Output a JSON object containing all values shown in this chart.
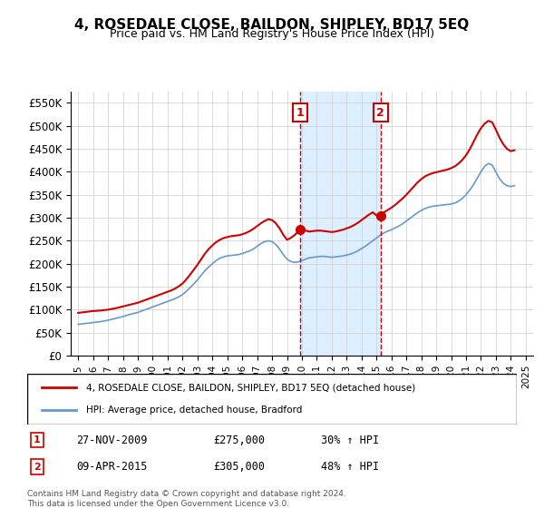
{
  "title": "4, ROSEDALE CLOSE, BAILDON, SHIPLEY, BD17 5EQ",
  "subtitle": "Price paid vs. HM Land Registry's House Price Index (HPI)",
  "legend_line1": "4, ROSEDALE CLOSE, BAILDON, SHIPLEY, BD17 5EQ (detached house)",
  "legend_line2": "HPI: Average price, detached house, Bradford",
  "footnote": "Contains HM Land Registry data © Crown copyright and database right 2024.\nThis data is licensed under the Open Government Licence v3.0.",
  "sale1_date": "27-NOV-2009",
  "sale1_price": 275000,
  "sale1_label": "30% ↑ HPI",
  "sale2_date": "09-APR-2015",
  "sale2_price": 305000,
  "sale2_label": "48% ↑ HPI",
  "sale1_x": 2009.9,
  "sale2_x": 2015.27,
  "ylim": [
    0,
    575000
  ],
  "xlim": [
    1994.5,
    2025.5
  ],
  "red_color": "#cc0000",
  "blue_color": "#6699cc",
  "shade_color": "#ddeeff",
  "yticks": [
    0,
    50000,
    100000,
    150000,
    200000,
    250000,
    300000,
    350000,
    400000,
    450000,
    500000,
    550000
  ],
  "ytick_labels": [
    "£0",
    "£50K",
    "£100K",
    "£150K",
    "£200K",
    "£250K",
    "£300K",
    "£350K",
    "£400K",
    "£450K",
    "£500K",
    "£550K"
  ],
  "hpi_years": [
    1995,
    1995.25,
    1995.5,
    1995.75,
    1996,
    1996.25,
    1996.5,
    1996.75,
    1997,
    1997.25,
    1997.5,
    1997.75,
    1998,
    1998.25,
    1998.5,
    1998.75,
    1999,
    1999.25,
    1999.5,
    1999.75,
    2000,
    2000.25,
    2000.5,
    2000.75,
    2001,
    2001.25,
    2001.5,
    2001.75,
    2002,
    2002.25,
    2002.5,
    2002.75,
    2003,
    2003.25,
    2003.5,
    2003.75,
    2004,
    2004.25,
    2004.5,
    2004.75,
    2005,
    2005.25,
    2005.5,
    2005.75,
    2006,
    2006.25,
    2006.5,
    2006.75,
    2007,
    2007.25,
    2007.5,
    2007.75,
    2008,
    2008.25,
    2008.5,
    2008.75,
    2009,
    2009.25,
    2009.5,
    2009.75,
    2010,
    2010.25,
    2010.5,
    2010.75,
    2011,
    2011.25,
    2011.5,
    2011.75,
    2012,
    2012.25,
    2012.5,
    2012.75,
    2013,
    2013.25,
    2013.5,
    2013.75,
    2014,
    2014.25,
    2014.5,
    2014.75,
    2015,
    2015.25,
    2015.5,
    2015.75,
    2016,
    2016.25,
    2016.5,
    2016.75,
    2017,
    2017.25,
    2017.5,
    2017.75,
    2018,
    2018.25,
    2018.5,
    2018.75,
    2019,
    2019.25,
    2019.5,
    2019.75,
    2020,
    2020.25,
    2020.5,
    2020.75,
    2021,
    2021.25,
    2021.5,
    2021.75,
    2022,
    2022.25,
    2022.5,
    2022.75,
    2023,
    2023.25,
    2023.5,
    2023.75,
    2024,
    2024.25
  ],
  "hpi_values": [
    68000,
    69000,
    70000,
    71000,
    72000,
    73000,
    74000,
    75500,
    77000,
    79000,
    81000,
    83000,
    85000,
    87500,
    90000,
    92000,
    94000,
    97000,
    100000,
    103000,
    106000,
    109000,
    112000,
    115000,
    118000,
    121000,
    124000,
    128000,
    133000,
    140000,
    148000,
    156000,
    165000,
    175000,
    185000,
    193000,
    200000,
    207000,
    212000,
    215000,
    217000,
    218000,
    219000,
    220000,
    222000,
    225000,
    228000,
    232000,
    238000,
    244000,
    248000,
    250000,
    248000,
    242000,
    232000,
    220000,
    210000,
    205000,
    203000,
    204000,
    207000,
    210000,
    213000,
    214000,
    215000,
    216000,
    216000,
    215000,
    214000,
    215000,
    216000,
    217000,
    219000,
    221000,
    224000,
    228000,
    233000,
    238000,
    244000,
    250000,
    256000,
    262000,
    267000,
    271000,
    274000,
    278000,
    282000,
    287000,
    293000,
    299000,
    305000,
    311000,
    316000,
    320000,
    323000,
    325000,
    326000,
    327000,
    328000,
    329000,
    330000,
    332000,
    336000,
    342000,
    350000,
    360000,
    372000,
    386000,
    400000,
    412000,
    418000,
    415000,
    400000,
    385000,
    375000,
    370000,
    368000,
    370000
  ],
  "property_years": [
    1995,
    1995.25,
    1995.5,
    1995.75,
    1996,
    1996.25,
    1996.5,
    1996.75,
    1997,
    1997.25,
    1997.5,
    1997.75,
    1998,
    1998.25,
    1998.5,
    1998.75,
    1999,
    1999.25,
    1999.5,
    1999.75,
    2000,
    2000.25,
    2000.5,
    2000.75,
    2001,
    2001.25,
    2001.5,
    2001.75,
    2002,
    2002.25,
    2002.5,
    2002.75,
    2003,
    2003.25,
    2003.5,
    2003.75,
    2004,
    2004.25,
    2004.5,
    2004.75,
    2005,
    2005.25,
    2005.5,
    2005.75,
    2006,
    2006.25,
    2006.5,
    2006.75,
    2007,
    2007.25,
    2007.5,
    2007.75,
    2008,
    2008.25,
    2008.5,
    2008.75,
    2009,
    2009.25,
    2009.5,
    2009.75,
    2010,
    2010.25,
    2010.5,
    2010.75,
    2011,
    2011.25,
    2011.5,
    2011.75,
    2012,
    2012.25,
    2012.5,
    2012.75,
    2013,
    2013.25,
    2013.5,
    2013.75,
    2014,
    2014.25,
    2014.5,
    2014.75,
    2015,
    2015.25,
    2015.5,
    2015.75,
    2016,
    2016.25,
    2016.5,
    2016.75,
    2017,
    2017.25,
    2017.5,
    2017.75,
    2018,
    2018.25,
    2018.5,
    2018.75,
    2019,
    2019.25,
    2019.5,
    2019.75,
    2020,
    2020.25,
    2020.5,
    2020.75,
    2021,
    2021.25,
    2021.5,
    2021.75,
    2022,
    2022.25,
    2022.5,
    2022.75,
    2023,
    2023.25,
    2023.5,
    2023.75,
    2024,
    2024.25
  ],
  "property_values": [
    93000,
    94000,
    95000,
    96000,
    97000,
    97500,
    98000,
    99000,
    100000,
    101500,
    103000,
    105000,
    107000,
    109000,
    111000,
    113000,
    115000,
    118000,
    121000,
    124000,
    127000,
    130000,
    133000,
    136000,
    139000,
    142000,
    146000,
    151000,
    157000,
    166000,
    176000,
    187000,
    198000,
    210000,
    222000,
    232000,
    240000,
    247000,
    252000,
    256000,
    258000,
    260000,
    261000,
    262000,
    264000,
    267000,
    271000,
    276000,
    282000,
    288000,
    293000,
    297000,
    295000,
    288000,
    277000,
    263000,
    252000,
    256000,
    262000,
    270000,
    275000,
    272000,
    270000,
    271000,
    272000,
    272000,
    271000,
    270000,
    269000,
    270000,
    272000,
    274000,
    277000,
    280000,
    284000,
    289000,
    295000,
    301000,
    307000,
    312000,
    305000,
    308000,
    312000,
    317000,
    322000,
    328000,
    335000,
    342000,
    350000,
    359000,
    368000,
    377000,
    384000,
    390000,
    394000,
    397000,
    399000,
    401000,
    403000,
    405000,
    408000,
    412000,
    418000,
    426000,
    436000,
    449000,
    465000,
    481000,
    495000,
    505000,
    511000,
    508000,
    492000,
    474000,
    460000,
    450000,
    445000,
    447000
  ]
}
